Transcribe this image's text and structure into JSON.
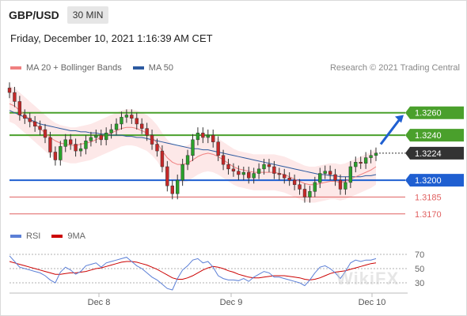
{
  "header": {
    "pair": "GBP/USD",
    "timeframe": "30 MIN"
  },
  "datetime": "Friday, December 10, 2021 1:16:39 AM CET",
  "legend": {
    "ma20": {
      "label": "MA 20 + Bollinger Bands",
      "color": "#f08080"
    },
    "ma50": {
      "label": "MA 50",
      "color": "#2c5aa0"
    }
  },
  "copyright": "Research © 2021 Trading Central",
  "rsi_legend": {
    "rsi": {
      "label": "RSI",
      "color": "#5b7fd6"
    },
    "ma9": {
      "label": "9MA",
      "color": "#cc0000"
    }
  },
  "watermark": "WikiFX",
  "chart_data": {
    "type": "candlestick",
    "ylim": [
      1.316,
      1.329
    ],
    "current_price": {
      "value": 1.3224,
      "label": "1.3224"
    },
    "levels": [
      {
        "value": 1.326,
        "label": "1.3260",
        "kind": "resistance",
        "color": "#4aa02c"
      },
      {
        "value": 1.324,
        "label": "1.3240",
        "kind": "resistance",
        "color": "#4aa02c"
      },
      {
        "value": 1.32,
        "label": "1.3200",
        "kind": "pivot",
        "color": "#1f5fd1"
      },
      {
        "value": 1.3185,
        "label": "1.3185",
        "kind": "support",
        "color": "#e06060"
      },
      {
        "value": 1.317,
        "label": "1.3170",
        "kind": "support",
        "color": "#e06060"
      }
    ],
    "x_ticks": [
      "Dec 8",
      "Dec 9",
      "Dec 10"
    ],
    "forecast_arrow": {
      "from": 1.3232,
      "to": 1.3258,
      "color": "#1f5fd1"
    },
    "close": [
      1.3278,
      1.327,
      1.3258,
      1.3255,
      1.3252,
      1.3248,
      1.3245,
      1.3238,
      1.3225,
      1.3218,
      1.323,
      1.3236,
      1.3232,
      1.3226,
      1.3228,
      1.3235,
      1.3238,
      1.324,
      1.3236,
      1.3242,
      1.3245,
      1.325,
      1.3256,
      1.3258,
      1.3255,
      1.325,
      1.3246,
      1.324,
      1.3232,
      1.3226,
      1.3212,
      1.3195,
      1.3188,
      1.32,
      1.3214,
      1.3222,
      1.3236,
      1.3242,
      1.3238,
      1.324,
      1.3234,
      1.3222,
      1.3214,
      1.321,
      1.3208,
      1.3205,
      1.3207,
      1.3202,
      1.3206,
      1.321,
      1.3214,
      1.3212,
      1.3206,
      1.3205,
      1.3202,
      1.32,
      1.3196,
      1.3192,
      1.3185,
      1.319,
      1.3198,
      1.3206,
      1.3208,
      1.3205,
      1.32,
      1.3192,
      1.3198,
      1.3212,
      1.3216,
      1.3215,
      1.322,
      1.3222,
      1.3224
    ],
    "ma20": [
      1.3268,
      1.3266,
      1.3262,
      1.3258,
      1.3254,
      1.325,
      1.3246,
      1.3242,
      1.3238,
      1.3235,
      1.3233,
      1.3232,
      1.3231,
      1.3231,
      1.3232,
      1.3233,
      1.3234,
      1.3236,
      1.3238,
      1.324,
      1.3242,
      1.3244,
      1.3246,
      1.3247,
      1.3247,
      1.3246,
      1.3244,
      1.3242,
      1.3238,
      1.3233,
      1.3226,
      1.322,
      1.3216,
      1.3214,
      1.3214,
      1.3215,
      1.3218,
      1.3221,
      1.3223,
      1.3224,
      1.3223,
      1.3221,
      1.3218,
      1.3215,
      1.3212,
      1.321,
      1.3209,
      1.3208,
      1.3207,
      1.3207,
      1.3207,
      1.3207,
      1.3207,
      1.3206,
      1.3205,
      1.3203,
      1.3201,
      1.3199,
      1.3197,
      1.3196,
      1.3196,
      1.3197,
      1.3198,
      1.3199,
      1.3199,
      1.3198,
      1.3199,
      1.3201,
      1.3203,
      1.3205,
      1.3207,
      1.3209,
      1.3212
    ],
    "ma50": [
      1.3262,
      1.326,
      1.3258,
      1.3256,
      1.3254,
      1.3252,
      1.325,
      1.3249,
      1.3248,
      1.3247,
      1.3246,
      1.3245,
      1.3244,
      1.3244,
      1.3243,
      1.3243,
      1.3242,
      1.3242,
      1.3241,
      1.3241,
      1.324,
      1.324,
      1.324,
      1.3239,
      1.3239,
      1.3238,
      1.3238,
      1.3237,
      1.3236,
      1.3235,
      1.3234,
      1.3233,
      1.3232,
      1.3231,
      1.323,
      1.3229,
      1.3228,
      1.3228,
      1.3227,
      1.3227,
      1.3226,
      1.3225,
      1.3224,
      1.3223,
      1.3222,
      1.3221,
      1.322,
      1.3219,
      1.3218,
      1.3217,
      1.3216,
      1.3215,
      1.3214,
      1.3213,
      1.3212,
      1.3211,
      1.321,
      1.3209,
      1.3208,
      1.3207,
      1.3206,
      1.3205,
      1.3205,
      1.3204,
      1.3204,
      1.3203,
      1.3203,
      1.3203,
      1.3203,
      1.3203,
      1.3204,
      1.3204,
      1.3205
    ],
    "rsi_levels": [
      70,
      50,
      30
    ],
    "rsi": [
      68,
      60,
      52,
      50,
      48,
      46,
      44,
      40,
      34,
      30,
      45,
      52,
      48,
      42,
      46,
      54,
      56,
      58,
      52,
      58,
      60,
      62,
      64,
      66,
      60,
      54,
      50,
      44,
      38,
      34,
      28,
      22,
      20,
      36,
      48,
      54,
      62,
      64,
      58,
      60,
      52,
      40,
      36,
      34,
      34,
      33,
      36,
      32,
      38,
      42,
      46,
      44,
      38,
      38,
      36,
      34,
      32,
      30,
      26,
      34,
      44,
      52,
      54,
      50,
      44,
      36,
      46,
      58,
      62,
      60,
      62,
      62,
      64
    ],
    "rsi_ma9": [
      60,
      58,
      56,
      54,
      52,
      50,
      48,
      46,
      44,
      42,
      42,
      43,
      44,
      44,
      45,
      46,
      48,
      50,
      51,
      53,
      55,
      57,
      59,
      60,
      60,
      59,
      57,
      55,
      52,
      49,
      45,
      41,
      37,
      35,
      35,
      37,
      40,
      44,
      48,
      51,
      53,
      52,
      50,
      47,
      45,
      42,
      40,
      38,
      37,
      37,
      38,
      39,
      40,
      40,
      40,
      39,
      38,
      37,
      35,
      34,
      35,
      37,
      40,
      43,
      45,
      46,
      47,
      49,
      51,
      53,
      55,
      57,
      58
    ]
  }
}
